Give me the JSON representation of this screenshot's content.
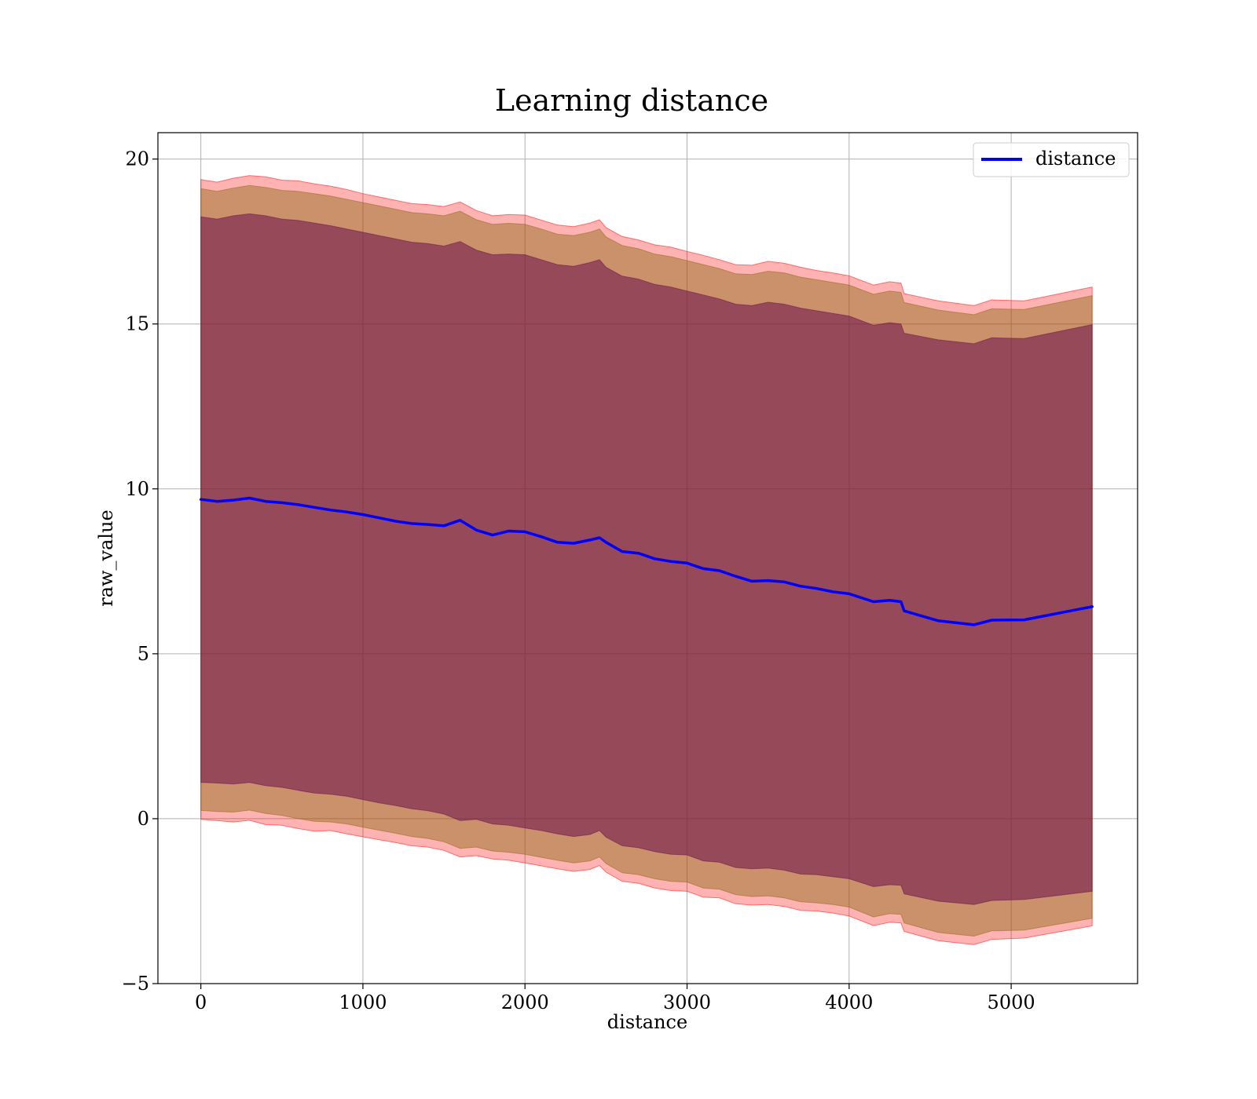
{
  "chart_data": {
    "type": "area",
    "title": "Learning distance",
    "xlabel": "distance",
    "ylabel": "raw_value",
    "xlim": [
      -265,
      5780
    ],
    "ylim": [
      -5,
      20.8
    ],
    "xticks": [
      0,
      1000,
      2000,
      3000,
      4000,
      5000
    ],
    "yticks": [
      -5,
      0,
      5,
      10,
      15,
      20
    ],
    "xtick_labels": [
      "0",
      "1000",
      "2000",
      "3000",
      "4000",
      "5000"
    ],
    "ytick_labels": [
      "−5",
      "0",
      "5",
      "10",
      "15",
      "20"
    ],
    "grid": true,
    "legend": {
      "position": "top-right",
      "entries": [
        "distance"
      ]
    },
    "colors": {
      "line": "#0000ff",
      "band_outer": "#ff0000",
      "band_middle": "#8b6914",
      "band_inner": "#6a0f4a",
      "grid": "#b0b0b0"
    },
    "x": [
      0,
      100,
      200,
      300,
      400,
      500,
      600,
      700,
      800,
      900,
      1000,
      1100,
      1200,
      1300,
      1400,
      1500,
      1600,
      1700,
      1800,
      1900,
      2000,
      2100,
      2200,
      2300,
      2400,
      2460,
      2500,
      2600,
      2700,
      2800,
      2900,
      3000,
      3100,
      3200,
      3300,
      3400,
      3500,
      3600,
      3700,
      3800,
      3900,
      4000,
      4150,
      4250,
      4320,
      4340,
      4550,
      4770,
      4880,
      5080,
      5500
    ],
    "series": [
      {
        "name": "distance",
        "values": [
          9.68,
          9.62,
          9.66,
          9.72,
          9.62,
          9.58,
          9.52,
          9.44,
          9.36,
          9.3,
          9.22,
          9.12,
          9.02,
          8.95,
          8.92,
          8.88,
          9.05,
          8.75,
          8.6,
          8.72,
          8.7,
          8.55,
          8.38,
          8.35,
          8.45,
          8.52,
          8.38,
          8.1,
          8.05,
          7.88,
          7.8,
          7.75,
          7.58,
          7.52,
          7.35,
          7.2,
          7.22,
          7.18,
          7.05,
          6.98,
          6.88,
          6.82,
          6.58,
          6.62,
          6.58,
          6.3,
          6.0,
          5.88,
          6.02,
          6.03,
          6.43
        ]
      }
    ],
    "bands": [
      {
        "lower": [
          -0.02,
          -0.06,
          -0.1,
          -0.05,
          -0.18,
          -0.2,
          -0.3,
          -0.38,
          -0.36,
          -0.46,
          -0.55,
          -0.64,
          -0.72,
          -0.82,
          -0.86,
          -0.96,
          -1.16,
          -1.12,
          -1.22,
          -1.26,
          -1.34,
          -1.43,
          -1.52,
          -1.6,
          -1.54,
          -1.42,
          -1.62,
          -1.9,
          -1.96,
          -2.1,
          -2.18,
          -2.2,
          -2.38,
          -2.4,
          -2.58,
          -2.62,
          -2.6,
          -2.66,
          -2.78,
          -2.8,
          -2.86,
          -2.95,
          -3.24,
          -3.14,
          -3.16,
          -3.42,
          -3.7,
          -3.82,
          -3.66,
          -3.62,
          -3.25
        ],
        "upper": [
          19.38,
          19.3,
          19.42,
          19.5,
          19.46,
          19.36,
          19.34,
          19.25,
          19.18,
          19.08,
          18.95,
          18.85,
          18.75,
          18.65,
          18.62,
          18.56,
          18.7,
          18.44,
          18.28,
          18.32,
          18.3,
          18.15,
          18.0,
          17.95,
          18.06,
          18.16,
          17.92,
          17.65,
          17.55,
          17.4,
          17.33,
          17.2,
          17.08,
          16.95,
          16.8,
          16.78,
          16.9,
          16.84,
          16.72,
          16.62,
          16.55,
          16.46,
          16.18,
          16.28,
          16.24,
          15.92,
          15.7,
          15.56,
          15.73,
          15.7,
          16.12
        ]
      },
      {
        "lower": [
          0.25,
          0.22,
          0.2,
          0.26,
          0.16,
          0.1,
          0.0,
          -0.08,
          -0.1,
          -0.16,
          -0.26,
          -0.35,
          -0.44,
          -0.54,
          -0.6,
          -0.7,
          -0.9,
          -0.86,
          -0.98,
          -1.02,
          -1.08,
          -1.17,
          -1.26,
          -1.34,
          -1.28,
          -1.16,
          -1.36,
          -1.64,
          -1.7,
          -1.82,
          -1.9,
          -1.92,
          -2.1,
          -2.14,
          -2.3,
          -2.36,
          -2.34,
          -2.4,
          -2.52,
          -2.55,
          -2.6,
          -2.68,
          -2.98,
          -2.88,
          -2.9,
          -3.16,
          -3.45,
          -3.56,
          -3.4,
          -3.38,
          -3.02
        ],
        "upper": [
          19.1,
          19.02,
          19.12,
          19.2,
          19.14,
          19.05,
          19.02,
          18.95,
          18.88,
          18.78,
          18.68,
          18.58,
          18.48,
          18.38,
          18.34,
          18.28,
          18.42,
          18.16,
          18.02,
          18.05,
          18.02,
          17.88,
          17.72,
          17.68,
          17.78,
          17.88,
          17.64,
          17.38,
          17.28,
          17.12,
          17.04,
          16.92,
          16.8,
          16.68,
          16.52,
          16.5,
          16.6,
          16.55,
          16.42,
          16.34,
          16.26,
          16.18,
          15.9,
          16.0,
          15.96,
          15.65,
          15.42,
          15.28,
          15.46,
          15.44,
          15.86
        ]
      },
      {
        "lower": [
          1.1,
          1.08,
          1.05,
          1.1,
          1.0,
          0.95,
          0.86,
          0.78,
          0.74,
          0.68,
          0.58,
          0.48,
          0.4,
          0.3,
          0.24,
          0.14,
          -0.06,
          -0.02,
          -0.16,
          -0.2,
          -0.28,
          -0.36,
          -0.46,
          -0.54,
          -0.48,
          -0.36,
          -0.56,
          -0.82,
          -0.88,
          -1.0,
          -1.08,
          -1.1,
          -1.28,
          -1.32,
          -1.48,
          -1.52,
          -1.5,
          -1.56,
          -1.68,
          -1.7,
          -1.76,
          -1.82,
          -2.06,
          -2.0,
          -2.02,
          -2.28,
          -2.5,
          -2.6,
          -2.48,
          -2.45,
          -2.2
        ],
        "upper": [
          18.25,
          18.18,
          18.28,
          18.34,
          18.28,
          18.18,
          18.14,
          18.06,
          17.98,
          17.88,
          17.78,
          17.68,
          17.58,
          17.48,
          17.44,
          17.36,
          17.5,
          17.24,
          17.1,
          17.12,
          17.1,
          16.95,
          16.8,
          16.75,
          16.86,
          16.95,
          16.72,
          16.45,
          16.36,
          16.2,
          16.12,
          16.0,
          15.88,
          15.76,
          15.6,
          15.56,
          15.66,
          15.6,
          15.48,
          15.4,
          15.32,
          15.24,
          14.96,
          15.04,
          15.0,
          14.72,
          14.52,
          14.4,
          14.58,
          14.56,
          14.98
        ]
      }
    ]
  }
}
